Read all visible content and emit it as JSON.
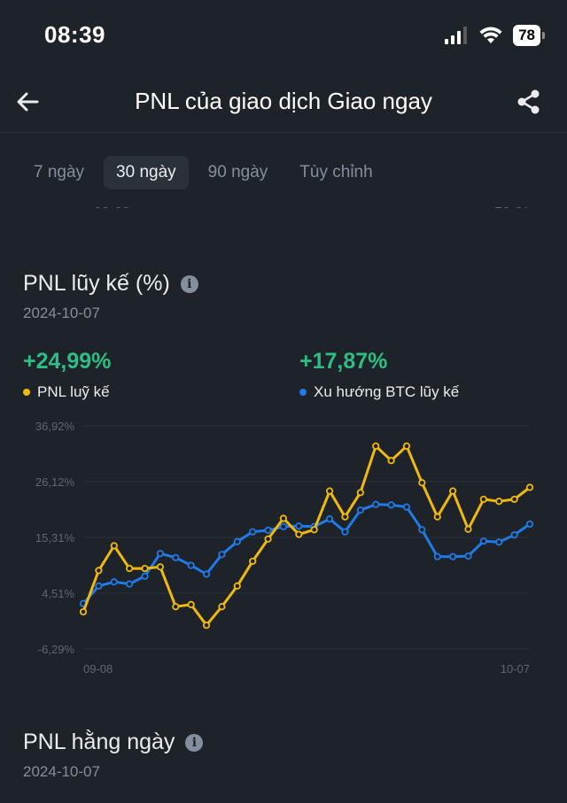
{
  "status": {
    "time": "08:39",
    "battery": "78"
  },
  "header": {
    "title": "PNL của giao dịch Giao ngay"
  },
  "tabs": [
    {
      "label": "7 ngày",
      "active": false
    },
    {
      "label": "30 ngày",
      "active": true
    },
    {
      "label": "90 ngày",
      "active": false
    },
    {
      "label": "Tùy chỉnh",
      "active": false
    }
  ],
  "clipped_labels": {
    "left": "09-08",
    "right": "10-07"
  },
  "cumulative": {
    "title": "PNL lũy kế (%)",
    "date": "2024-10-07",
    "pnl_value": "+24,99%",
    "pnl_label": "PNL luỹ kế",
    "btc_value": "+17,87%",
    "btc_label": "Xu hướng BTC lũy kế"
  },
  "daily": {
    "title": "PNL hằng ngày",
    "date": "2024-10-07"
  },
  "colors": {
    "pnl": "#f0b90b",
    "btc": "#1e7be8",
    "positive": "#2ebd85"
  },
  "chart_data": {
    "type": "line",
    "y_ticks": [
      "36,92%",
      "26,12%",
      "15,31%",
      "4,51%",
      "-6,29%"
    ],
    "y_tick_values": [
      36.92,
      26.12,
      15.31,
      4.51,
      -6.29
    ],
    "ylim": [
      -6.29,
      36.92
    ],
    "x_tick_labels": [
      "09-08",
      "10-07"
    ],
    "grid": true,
    "series": [
      {
        "name": "PNL luỹ kế",
        "color": "#f0b90b",
        "values": [
          0.9,
          8.9,
          13.7,
          9.3,
          9.3,
          9.6,
          1.9,
          2.3,
          -1.7,
          1.9,
          5.9,
          10.7,
          15.0,
          19.0,
          15.9,
          16.8,
          24.3,
          19.3,
          24.0,
          33.0,
          30.2,
          33.0,
          25.9,
          19.3,
          24.3,
          16.9,
          22.7,
          22.3,
          22.7,
          25.0
        ]
      },
      {
        "name": "Xu hướng BTC lũy kế",
        "color": "#1e7be8",
        "values": [
          2.5,
          5.9,
          6.7,
          6.3,
          7.8,
          12.2,
          11.4,
          9.9,
          8.2,
          12.0,
          14.5,
          16.4,
          16.7,
          17.4,
          17.5,
          17.4,
          18.9,
          16.4,
          20.6,
          21.7,
          21.6,
          21.2,
          16.8,
          11.6,
          11.6,
          11.7,
          14.6,
          14.4,
          15.8,
          17.9
        ]
      }
    ]
  }
}
